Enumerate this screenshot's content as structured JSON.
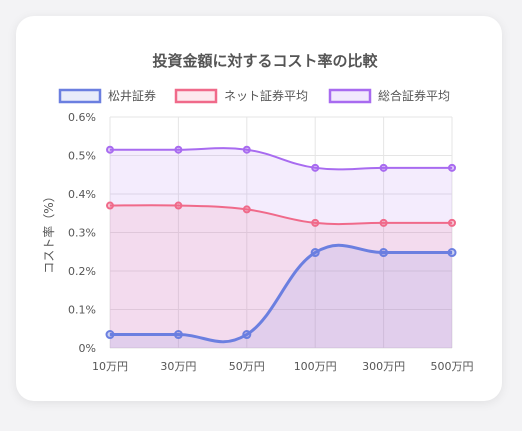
{
  "chart_data": {
    "type": "line",
    "title": "投資金額に対するコスト率の比較",
    "ylabel": "コスト率（%）",
    "xlabel": "",
    "categories": [
      "10万円",
      "30万円",
      "50万円",
      "100万円",
      "300万円",
      "500万円"
    ],
    "ylim": [
      0,
      0.6
    ],
    "yticks": [
      "0%",
      "0.1%",
      "0.2%",
      "0.3%",
      "0.4%",
      "0.5%",
      "0.6%"
    ],
    "grid": true,
    "filled": true,
    "smooth": true,
    "legend_position": "top",
    "series": [
      {
        "name": "松井証券",
        "values": [
          0.035,
          0.035,
          0.035,
          0.248,
          0.248,
          0.248
        ],
        "color": "#6b7fe0"
      },
      {
        "name": "ネット証券平均",
        "values": [
          0.37,
          0.37,
          0.36,
          0.325,
          0.325,
          0.325
        ],
        "color": "#f06a8a"
      },
      {
        "name": "総合証券平均",
        "values": [
          0.515,
          0.515,
          0.515,
          0.468,
          0.468,
          0.468
        ],
        "color": "#a86bf0"
      }
    ]
  }
}
